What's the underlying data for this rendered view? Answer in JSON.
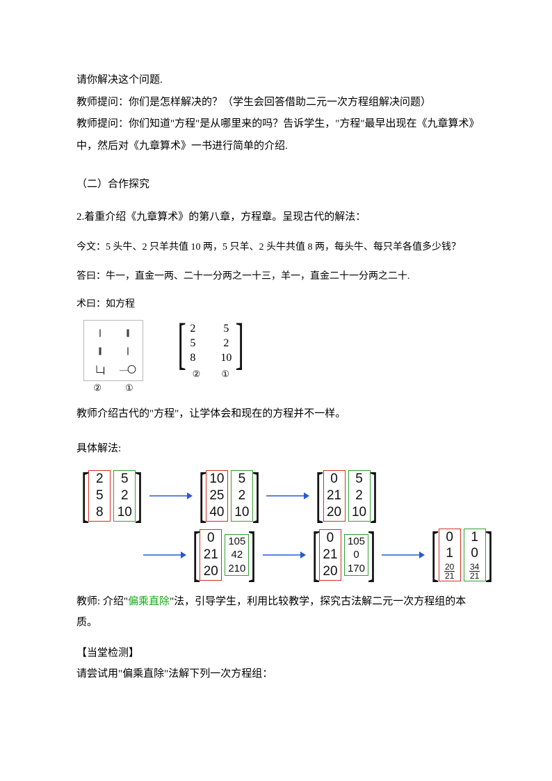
{
  "p1": "请你解决这个问题.",
  "p2": "教师提问：你们是怎样解决的？（学生会回答借助二元一次方程组解决问题）",
  "p3": "教师提问：你们知道\"方程\"是从哪里来的吗？告诉学生，\"方程\"最早出现在《九章算术》中，然后对《九章算术》一书进行简单的介绍.",
  "sec2_title": "（二）合作探究",
  "sec2_intro": "2.着重介绍《九章算术》的第八章，方程章。呈现古代的解法：",
  "jinwen": "今文：5 头牛、2 只羊共值 10 两，5 只羊、2 头牛共值 8 两，每头牛、每只羊各值多少钱？",
  "dayue": "答曰：牛一，直金一两、二十一分两之一十三，羊一，直金二十一分两之二十.",
  "shuyue": "术曰：如方程",
  "ancient": {
    "r1c1": "||",
    "r1c2": "|||||",
    "r2c1": "|||||",
    "r2c2": "||",
    "r3c1": "𠃊||",
    "r3c2": "—〇",
    "lab_left": "②",
    "lab_right": "①"
  },
  "matrix1": {
    "col1": [
      "2",
      "5",
      "8"
    ],
    "col2": [
      "5",
      "2",
      "10"
    ],
    "lab_left": "②",
    "lab_right": "①"
  },
  "p_teacher1": "教师介绍古代的\"方程\"，让学体会和现在的方程并不一样。",
  "sol_label": "具体解法:",
  "steps_top": [
    {
      "left": {
        "color": "red",
        "vals": [
          "2",
          "5",
          "8"
        ]
      },
      "right": {
        "color": "green",
        "vals": [
          "5",
          "2",
          "10"
        ]
      }
    },
    {
      "left": {
        "color": "red",
        "vals": [
          "10",
          "25",
          "40"
        ]
      },
      "right": {
        "color": "green",
        "vals": [
          "5",
          "2",
          "10"
        ]
      }
    },
    {
      "left": {
        "color": "red",
        "vals": [
          "0",
          "21",
          "20"
        ]
      },
      "right": {
        "color": "green",
        "vals": [
          "5",
          "2",
          "10"
        ]
      }
    }
  ],
  "steps_bot": [
    {
      "left": {
        "color": "red",
        "vals": [
          "0",
          "21",
          "20"
        ]
      },
      "right": {
        "color": "green",
        "small": true,
        "vals": [
          "105",
          "42",
          "210"
        ]
      }
    },
    {
      "left": {
        "color": "red",
        "vals": [
          "0",
          "21",
          "20"
        ]
      },
      "right": {
        "color": "green",
        "small": true,
        "vals": [
          "105",
          "0",
          "170"
        ]
      }
    },
    {
      "left": {
        "color": "red",
        "vals": [
          "0",
          "1",
          "20/21"
        ]
      },
      "right": {
        "color": "green",
        "vals": [
          "1",
          "0",
          "34/21"
        ]
      }
    }
  ],
  "p_teacher2_a": "教师: 介绍\"",
  "p_teacher2_b": "偏乘直除",
  "p_teacher2_c": "\"法，引导学生，利用比较教学，探究古法解二元一次方程组的本质。",
  "check_title": "【当堂检测】",
  "check_q": "请尝试用\"偏乘直除\"法解下列一次方程组：",
  "colors": {
    "text": "#000000",
    "red": "#d62d20",
    "green": "#2fa02f",
    "arrow": "#2759d6",
    "hl_green": "#17a817",
    "border_gray": "#b7b7b7"
  }
}
